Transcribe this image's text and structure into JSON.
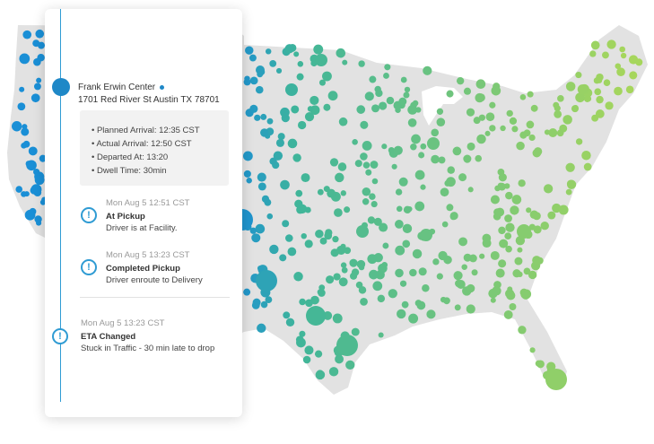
{
  "stop": {
    "name": "Frank Erwin Center",
    "address": "1701 Red River St Austin TX 78701",
    "details": [
      "Planned Arrival: 12:35 CST",
      "Actual Arrival: 12:50 CST",
      "Departed At: 13:20",
      "Dwell Time: 30min"
    ]
  },
  "events": [
    {
      "time": "Mon Aug 5 12:51 CST",
      "title": "At Pickup",
      "description": "Driver is at Facility.",
      "icon": "alert-circle-icon"
    },
    {
      "time": "Mon Aug 5 13:23 CST",
      "title": "Completed Pickup",
      "description": "Driver enroute to Delivery",
      "icon": "alert-circle-icon"
    },
    {
      "time": "Mon Aug 5 13:23 CST",
      "title": "ETA Changed",
      "description": "Stuck in Traffic - 30 min late to drop",
      "icon": "alert-circle-icon"
    }
  ],
  "colors": {
    "accent": "#1f88c7",
    "timeline": "#2f9bd3",
    "map_land": "#e2e2e2",
    "dots_west": "#1a8fd6",
    "dots_mid": "#3fb59a",
    "dots_east": "#a6d65c"
  }
}
